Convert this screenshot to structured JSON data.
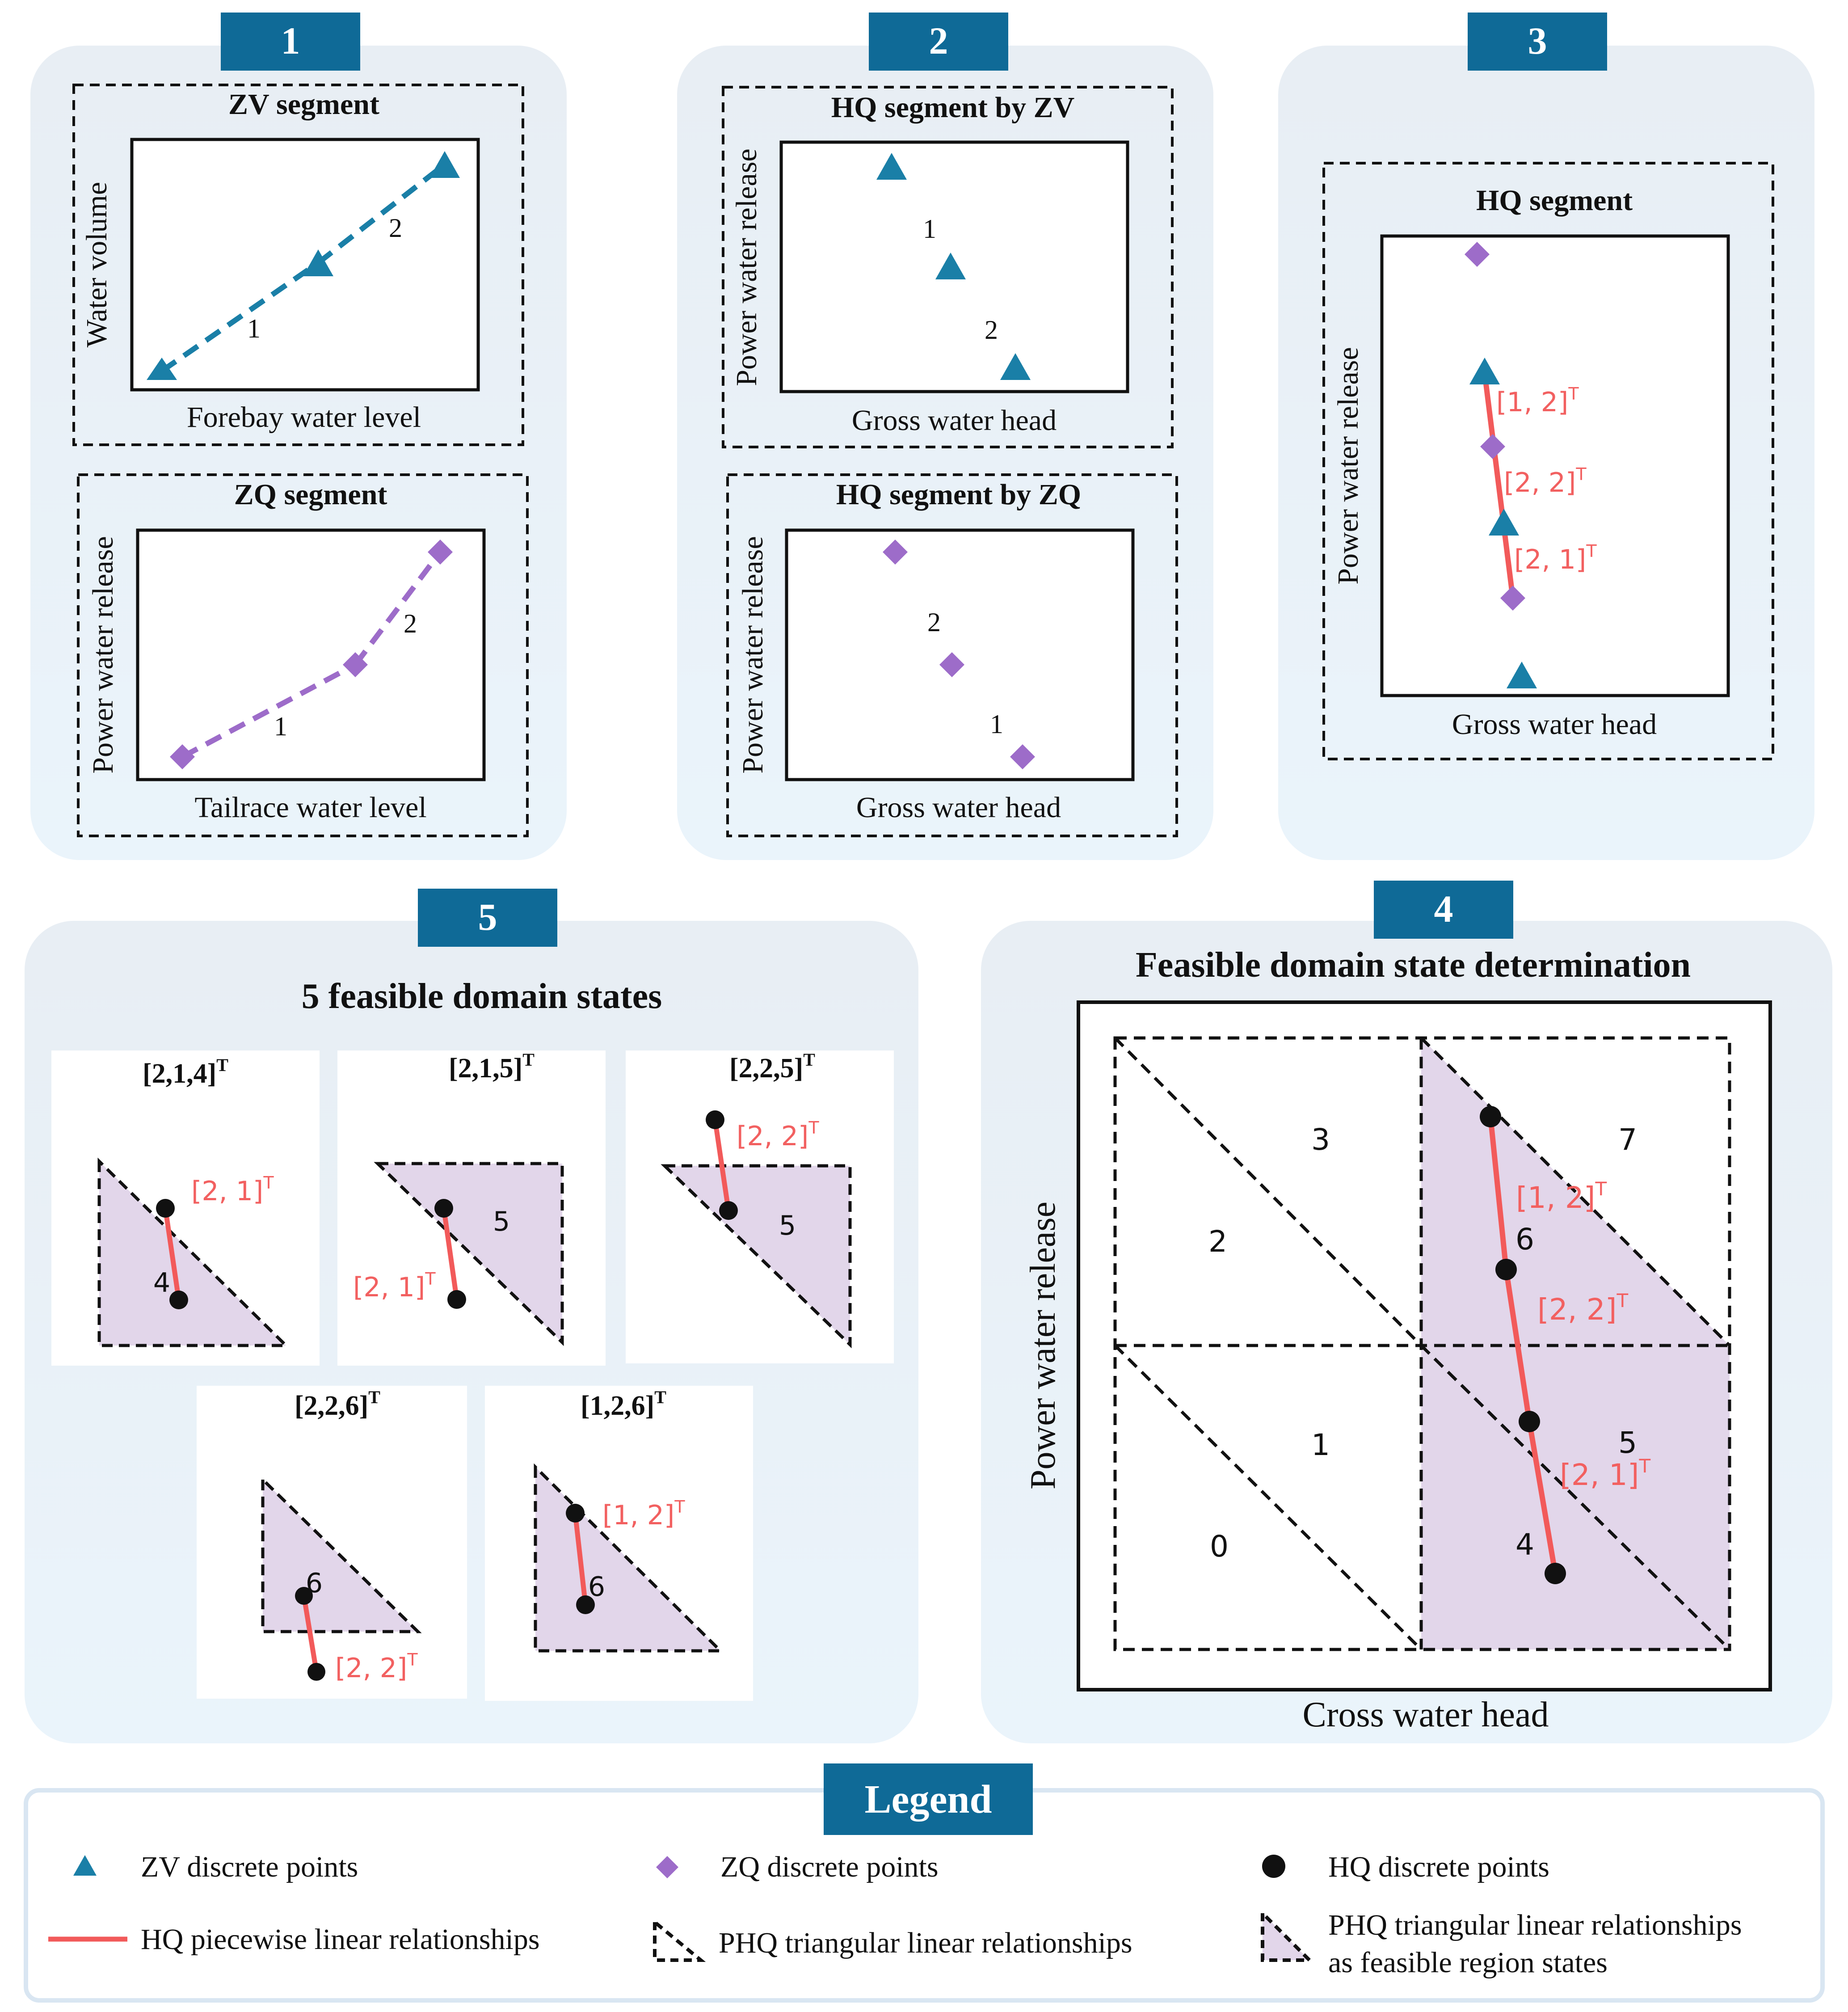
{
  "colors": {
    "panel_bg": "#eaf2f8",
    "badge": "#0f6a97",
    "zv_point": "#1a7fa7",
    "zq_point": "#9d6cc9",
    "hq_line": "#f25a5a",
    "feasible_fill": "#e2d6ea",
    "label_red": "#f26060",
    "dark": "#111111"
  },
  "badges": {
    "p1": "1",
    "p2": "2",
    "p3": "3",
    "p4": "4",
    "p5": "5"
  },
  "panel1": {
    "zv": {
      "title": "ZV segment",
      "xlabel": "Forebay water level",
      "ylabel": "Water volume",
      "seg1": "1",
      "seg2": "2"
    },
    "zq": {
      "title": "ZQ segment",
      "xlabel": "Tailrace water level",
      "ylabel": "Power water release",
      "seg1": "1",
      "seg2": "2"
    }
  },
  "panel2": {
    "byzv": {
      "title": "HQ segment by ZV",
      "xlabel": "Gross water head",
      "ylabel": "Power water release",
      "seg1": "1",
      "seg2": "2"
    },
    "byzq": {
      "title": "HQ segment by ZQ",
      "xlabel": "Gross water head",
      "ylabel": "Power water release",
      "seg1": "2",
      "seg2": "1"
    }
  },
  "panel3": {
    "title": "HQ segment",
    "xlabel": "Gross water head",
    "ylabel": "Power water release",
    "label_a": "[1, 2]",
    "label_b": "[2, 2]",
    "label_c": "[2, 1]",
    "sup": "T"
  },
  "panel4": {
    "title": "Feasible domain state determination",
    "xlabel": "Cross water head",
    "ylabel": "Power water release",
    "regions": {
      "r0": "0",
      "r1": "1",
      "r2": "2",
      "r3": "3",
      "r4": "4",
      "r5": "5",
      "r6": "6",
      "r7": "7"
    },
    "label_a": "[1, 2]",
    "label_b": "[2, 2]",
    "label_c": "[2, 1]",
    "sup": "T"
  },
  "panel5": {
    "title": "5 feasible domain states",
    "sup": "T",
    "states": [
      {
        "title": "[2,1,4]",
        "line_label": "[2, 1]",
        "region": "4"
      },
      {
        "title": "[2,1,5]",
        "line_label": "[2, 1]",
        "region": "5"
      },
      {
        "title": "[2,2,5]",
        "line_label": "[2, 2]",
        "region": "5"
      },
      {
        "title": "[2,2,6]",
        "line_label": "[2, 2]",
        "region": "6"
      },
      {
        "title": "[1,2,6]",
        "line_label": "[1, 2]",
        "region": "6"
      }
    ]
  },
  "legend": {
    "title": "Legend",
    "zv": "ZV discrete points",
    "zq": "ZQ discrete points",
    "hq": "HQ discrete points",
    "hq_line": "HQ piecewise linear relationships",
    "phq": "PHQ triangular linear relationships",
    "phq_feasible_1": "PHQ triangular linear relationships",
    "phq_feasible_2": "as feasible region states"
  }
}
